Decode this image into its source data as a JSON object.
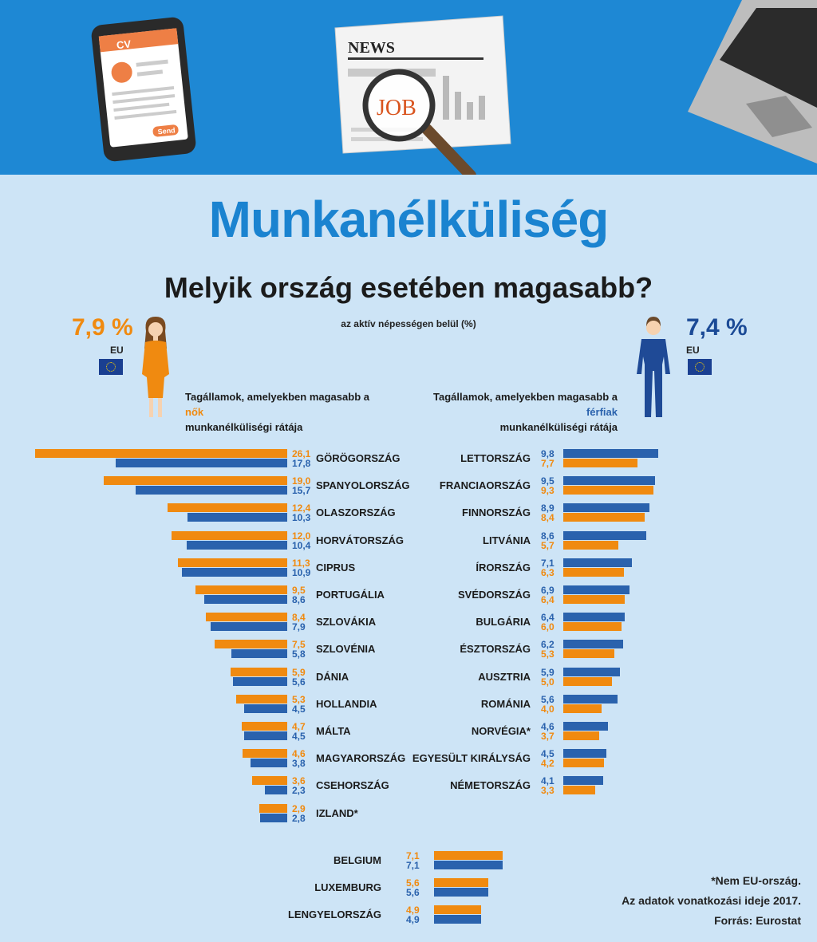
{
  "title": "Munkanélküliség",
  "subtitle": "Melyik ország esetében magasabb?",
  "unit_note": "az aktív népességen belül (%)",
  "illustration": {
    "cv_label": "CV",
    "send_label": "Send",
    "news_label": "NEWS",
    "job_label": "JOB"
  },
  "women": {
    "eu_value": "7,9 %",
    "eu_label": "EU",
    "heading_pre": "Tagállamok, amelyekben magasabb a",
    "heading_hl": "nők",
    "heading_post": "munkanélküliségi rátája"
  },
  "men": {
    "eu_value": "7,4 %",
    "eu_label": "EU",
    "heading_pre": "Tagállamok, amelyekben magasabb a",
    "heading_hl": "férfiak",
    "heading_post": "munkanélküliségi rátája"
  },
  "colors": {
    "women": "#f08a10",
    "men": "#2a62ad",
    "title": "#1a83d0",
    "banner": "#1e88d4",
    "background": "#cde4f6"
  },
  "chart_data": [
    {
      "type": "bar",
      "group": "women-higher",
      "categories": [
        "GÖRÖGORSZÁG",
        "SPANYOLORSZÁG",
        "OLASZORSZÁG",
        "HORVÁTORSZÁG",
        "CIPRUS",
        "PORTUGÁLIA",
        "SZLOVÁKIA",
        "SZLOVÉNIA",
        "DÁNIA",
        "HOLLANDIA",
        "MÁLTA",
        "MAGYARORSZÁG",
        "CSEHORSZÁG",
        "IZLAND*"
      ],
      "series": [
        {
          "values": [
            26.1,
            19.0,
            12.4,
            12.0,
            11.3,
            9.5,
            8.4,
            7.5,
            5.9,
            5.3,
            4.7,
            4.6,
            3.6,
            2.9
          ],
          "labels": [
            "26,1",
            "19,0",
            "12,4",
            "12,0",
            "11,3",
            "9,5",
            "8,4",
            "7,5",
            "5,9",
            "5,3",
            "4,7",
            "4,6",
            "3,6",
            "2,9"
          ]
        },
        {
          "values": [
            17.8,
            15.7,
            10.3,
            10.4,
            10.9,
            8.6,
            7.9,
            5.8,
            5.6,
            4.5,
            4.5,
            3.8,
            2.3,
            2.8
          ],
          "labels": [
            "17,8",
            "15,7",
            "10,3",
            "10,4",
            "10,9",
            "8,6",
            "7,9",
            "5,8",
            "5,6",
            "4,5",
            "4,5",
            "3,8",
            "2,3",
            "2,8"
          ]
        }
      ]
    },
    {
      "type": "bar",
      "group": "men-higher",
      "categories": [
        "LETTORSZÁG",
        "FRANCIAORSZÁG",
        "FINNORSZÁG",
        "LITVÁNIA",
        "ÍRORSZÁG",
        "SVÉDORSZÁG",
        "BULGÁRIA",
        "ÉSZTORSZÁG",
        "AUSZTRIA",
        "ROMÁNIA",
        "NORVÉGIA*",
        "EGYESÜLT KIRÁLYSÁG",
        "NÉMETORSZÁG"
      ],
      "series": [
        {
          "values": [
            9.8,
            9.5,
            8.9,
            8.6,
            7.1,
            6.9,
            6.4,
            6.2,
            5.9,
            5.6,
            4.6,
            4.5,
            4.1
          ],
          "labels": [
            "9,8",
            "9,5",
            "8,9",
            "8,6",
            "7,1",
            "6,9",
            "6,4",
            "6,2",
            "5,9",
            "5,6",
            "4,6",
            "4,5",
            "4,1"
          ]
        },
        {
          "values": [
            7.7,
            9.3,
            8.4,
            5.7,
            6.3,
            6.4,
            6.0,
            5.3,
            5.0,
            4.0,
            3.7,
            4.2,
            3.3
          ],
          "labels": [
            "7,7",
            "9,3",
            "8,4",
            "5,7",
            "6,3",
            "6,4",
            "6,0",
            "5,3",
            "5,0",
            "4,0",
            "3,7",
            "4,2",
            "3,3"
          ]
        }
      ]
    },
    {
      "type": "bar",
      "group": "equal",
      "categories": [
        "BELGIUM",
        "LUXEMBURG",
        "LENGYELORSZÁG"
      ],
      "series": [
        {
          "values": [
            7.1,
            5.6,
            4.9
          ],
          "labels": [
            "7,1",
            "5,6",
            "4,9"
          ]
        },
        {
          "values": [
            7.1,
            5.6,
            4.9
          ],
          "labels": [
            "7,1",
            "5,6",
            "4,9"
          ]
        }
      ]
    }
  ],
  "footnotes": [
    "*Nem EU-ország.",
    "Az adatok vonatkozási ideje 2017.",
    "Forrás: Eurostat"
  ]
}
